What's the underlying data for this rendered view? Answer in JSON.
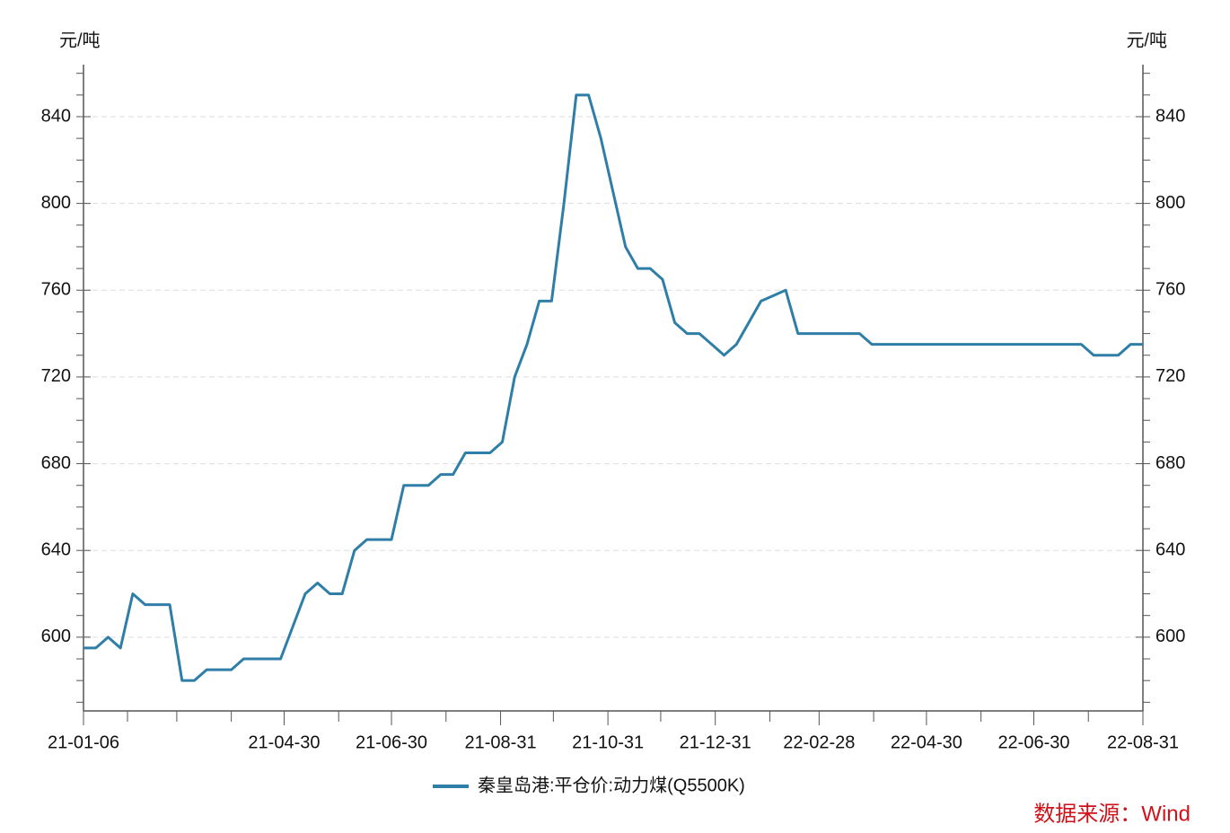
{
  "chart_data": {
    "type": "line",
    "ylabel": "元/吨",
    "y2label": "元/吨",
    "source": "数据来源：Wind",
    "x": [
      "2021-01-06",
      "2021-01-13",
      "2021-01-20",
      "2021-01-27",
      "2021-02-03",
      "2021-02-10",
      "2021-02-17",
      "2021-02-24",
      "2021-03-03",
      "2021-03-10",
      "2021-03-17",
      "2021-03-24",
      "2021-03-31",
      "2021-04-07",
      "2021-04-14",
      "2021-04-21",
      "2021-04-28",
      "2021-05-05",
      "2021-05-12",
      "2021-05-19",
      "2021-05-26",
      "2021-06-02",
      "2021-06-09",
      "2021-06-16",
      "2021-06-23",
      "2021-06-30",
      "2021-07-07",
      "2021-07-14",
      "2021-07-21",
      "2021-07-28",
      "2021-08-04",
      "2021-08-11",
      "2021-08-18",
      "2021-08-25",
      "2021-09-01",
      "2021-09-08",
      "2021-09-15",
      "2021-09-22",
      "2021-09-29",
      "2021-10-06",
      "2021-10-13",
      "2021-10-20",
      "2021-10-27",
      "2021-11-03",
      "2021-11-10",
      "2021-11-17",
      "2021-11-24",
      "2021-12-01",
      "2021-12-08",
      "2021-12-15",
      "2021-12-22",
      "2021-12-29",
      "2022-01-05",
      "2022-01-12",
      "2022-01-19",
      "2022-01-26",
      "2022-02-02",
      "2022-02-09",
      "2022-02-16",
      "2022-02-23",
      "2022-03-02",
      "2022-03-09",
      "2022-03-16",
      "2022-03-23",
      "2022-03-30",
      "2022-04-06",
      "2022-04-13",
      "2022-04-20",
      "2022-04-27",
      "2022-05-04",
      "2022-05-11",
      "2022-05-18",
      "2022-05-25",
      "2022-06-01",
      "2022-06-08",
      "2022-06-15",
      "2022-06-22",
      "2022-06-29",
      "2022-07-06",
      "2022-07-13",
      "2022-07-20",
      "2022-07-27",
      "2022-08-03",
      "2022-08-10",
      "2022-08-17",
      "2022-08-24",
      "2022-08-31"
    ],
    "series": [
      {
        "name": "秦皇岛港:平仓价:动力煤(Q5500K)",
        "color": "#2f7ea8",
        "values": [
          595,
          595,
          600,
          595,
          620,
          615,
          615,
          615,
          580,
          580,
          585,
          585,
          585,
          590,
          590,
          590,
          590,
          605,
          620,
          625,
          620,
          620,
          640,
          645,
          645,
          645,
          670,
          670,
          670,
          675,
          675,
          685,
          685,
          685,
          690,
          720,
          735,
          755,
          755,
          800,
          850,
          850,
          830,
          805,
          780,
          770,
          770,
          765,
          745,
          740,
          740,
          735,
          730,
          735,
          745,
          755,
          757.5,
          760,
          740,
          740,
          740,
          740,
          740,
          740,
          735,
          735,
          735,
          735,
          735,
          735,
          735,
          735,
          735,
          735,
          735,
          735,
          735,
          735,
          735,
          735,
          735,
          735,
          730,
          730,
          730,
          735,
          735
        ]
      }
    ],
    "xlim": [
      "2021-01-06",
      "2022-08-31"
    ],
    "xticks": [
      {
        "value": "2021-01-06",
        "label": "21-01-06"
      },
      {
        "value": "2021-04-30",
        "label": "21-04-30"
      },
      {
        "value": "2021-06-30",
        "label": "21-06-30"
      },
      {
        "value": "2021-08-31",
        "label": "21-08-31"
      },
      {
        "value": "2021-10-31",
        "label": "21-10-31"
      },
      {
        "value": "2021-12-31",
        "label": "21-12-31"
      },
      {
        "value": "2022-02-28",
        "label": "22-02-28"
      },
      {
        "value": "2022-04-30",
        "label": "22-04-30"
      },
      {
        "value": "2022-06-30",
        "label": "22-06-30"
      },
      {
        "value": "2022-08-31",
        "label": "22-08-31"
      }
    ],
    "xminor_ticks": [
      "2021-01-31",
      "2021-02-28",
      "2021-03-31",
      "2021-05-31",
      "2021-07-31",
      "2021-09-30",
      "2021-11-30",
      "2022-01-31",
      "2022-03-31",
      "2022-05-31",
      "2022-07-31"
    ],
    "ylim": [
      566,
      864
    ],
    "yticks": [
      600,
      640,
      680,
      720,
      760,
      800,
      840
    ],
    "y2lim": [
      566,
      864
    ],
    "y2ticks": [
      600,
      640,
      680,
      720,
      760,
      800,
      840
    ],
    "yminor_ticks": [
      570,
      580,
      590,
      610,
      620,
      630,
      650,
      660,
      670,
      690,
      700,
      710,
      730,
      740,
      750,
      770,
      780,
      790,
      810,
      820,
      830,
      850,
      860
    ],
    "grid": true,
    "legend": "bottom"
  }
}
